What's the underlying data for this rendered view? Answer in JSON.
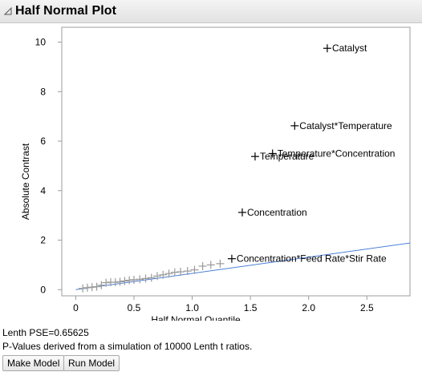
{
  "panel": {
    "title": "Half Normal Plot",
    "disclosure_icon": "triangle-down-icon"
  },
  "chart_data": {
    "type": "scatter",
    "xlabel": "Half Normal Quantile",
    "ylabel": "Absolute Contrast",
    "xlim": [
      -0.12,
      2.87
    ],
    "ylim": [
      -0.25,
      10.6
    ],
    "x_ticks": [
      "0",
      "0.5",
      "1.0",
      "1.5",
      "2.0",
      "2.5"
    ],
    "x_tick_values": [
      0,
      0.5,
      1.0,
      1.5,
      2.0,
      2.5
    ],
    "y_ticks": [
      "0",
      "2",
      "4",
      "6",
      "8",
      "10"
    ],
    "y_tick_values": [
      0,
      2,
      4,
      6,
      8,
      10
    ],
    "grid": false,
    "reference_line": {
      "slope": 0.656,
      "intercept": 0,
      "color": "#4a7fd8"
    },
    "labeled_points": [
      {
        "name": "Catalyst",
        "x": 2.16,
        "y": 9.75
      },
      {
        "name": "Catalyst*Temperature",
        "x": 1.88,
        "y": 6.62
      },
      {
        "name": "Temperature*Concentration",
        "x": 1.69,
        "y": 5.5
      },
      {
        "name": "Temperature",
        "x": 1.54,
        "y": 5.38
      },
      {
        "name": "Concentration",
        "x": 1.43,
        "y": 3.12
      },
      {
        "name": "Concentration*Feed Rate*Stir Rate",
        "x": 1.34,
        "y": 1.25
      }
    ],
    "unlabeled_points": [
      [
        0.06,
        0.05
      ],
      [
        0.1,
        0.08
      ],
      [
        0.14,
        0.1
      ],
      [
        0.18,
        0.12
      ],
      [
        0.22,
        0.18
      ],
      [
        0.26,
        0.28
      ],
      [
        0.3,
        0.3
      ],
      [
        0.34,
        0.3
      ],
      [
        0.38,
        0.32
      ],
      [
        0.42,
        0.35
      ],
      [
        0.46,
        0.38
      ],
      [
        0.5,
        0.4
      ],
      [
        0.55,
        0.42
      ],
      [
        0.6,
        0.45
      ],
      [
        0.65,
        0.48
      ],
      [
        0.7,
        0.55
      ],
      [
        0.75,
        0.6
      ],
      [
        0.8,
        0.65
      ],
      [
        0.85,
        0.7
      ],
      [
        0.9,
        0.72
      ],
      [
        0.96,
        0.75
      ],
      [
        1.02,
        0.8
      ],
      [
        1.09,
        0.95
      ],
      [
        1.16,
        1.0
      ],
      [
        1.24,
        1.05
      ]
    ],
    "colors": {
      "labeled": "#000000",
      "unlabeled": "#9a9a9a",
      "axis": "#9c9c9c"
    }
  },
  "footer": {
    "lenth_pse": "Lenth PSE=0.65625",
    "pvalues_note": "P-Values derived from a simulation of 10000 Lenth t ratios."
  },
  "buttons": {
    "make_model": "Make Model",
    "run_model": "Run Model"
  }
}
